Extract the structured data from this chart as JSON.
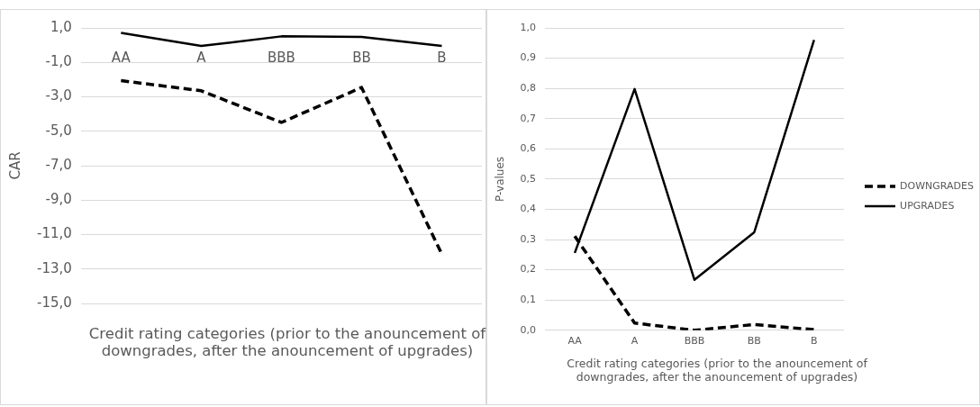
{
  "chart_data": [
    {
      "type": "line",
      "ylabel": "CAR",
      "xlabel": "Credit rating categories (prior to the anouncement of downgrades, after the anouncement of upgrades)",
      "categories": [
        "AA",
        "A",
        "BBB",
        "BB",
        "B"
      ],
      "series": [
        {
          "color": "#000000",
          "line_style": "solid",
          "values": [
            0.71,
            -0.05,
            0.51,
            0.48,
            -0.05
          ]
        },
        {
          "color": "#000000",
          "line_style": "dashed",
          "values": [
            -2.06,
            -2.65,
            -4.49,
            -2.46,
            -12.13
          ]
        }
      ],
      "ylim": [
        -15,
        1
      ],
      "yticks": [
        {
          "value": 1,
          "label": "1,0"
        },
        {
          "value": -1,
          "label": "-1,0"
        },
        {
          "value": -3,
          "label": "-3,0"
        },
        {
          "value": -5,
          "label": "-5,0"
        },
        {
          "value": -7,
          "label": "-7,0"
        },
        {
          "value": -9,
          "label": "-9,0"
        },
        {
          "value": -11,
          "label": "-11,0"
        },
        {
          "value": -13,
          "label": "-13,0"
        },
        {
          "value": -15,
          "label": "-15,0"
        }
      ],
      "grid": "y",
      "marker": "none",
      "legend": false
    },
    {
      "type": "line",
      "ylabel": "P-values",
      "xlabel": "Credit rating categories (prior to the anouncement of downgrades, after the anouncement of upgrades)",
      "categories": [
        "AA",
        "A",
        "BBB",
        "BB",
        "B"
      ],
      "series": [
        {
          "name": "DOWNGRADES",
          "color": "#000000",
          "line_style": "dashed",
          "values": [
            0.311,
            0.024,
            0.0,
            0.019,
            0.002
          ]
        },
        {
          "name": "UPGRADES",
          "color": "#000000",
          "line_style": "solid",
          "values": [
            0.256,
            0.798,
            0.167,
            0.324,
            0.96
          ]
        }
      ],
      "ylim": [
        0,
        1
      ],
      "yticks": [
        {
          "value": 0,
          "label": "0,0"
        },
        {
          "value": 0.1,
          "label": "0,1"
        },
        {
          "value": 0.2,
          "label": "0,2"
        },
        {
          "value": 0.3,
          "label": "0,3"
        },
        {
          "value": 0.4,
          "label": "0,4"
        },
        {
          "value": 0.5,
          "label": "0,5"
        },
        {
          "value": 0.6,
          "label": "0,6"
        },
        {
          "value": 0.7,
          "label": "0,7"
        },
        {
          "value": 0.8,
          "label": "0,8"
        },
        {
          "value": 0.9,
          "label": "0,9"
        },
        {
          "value": 1,
          "label": "1,0"
        }
      ],
      "grid": "y",
      "marker": "none",
      "legend": "right"
    }
  ]
}
